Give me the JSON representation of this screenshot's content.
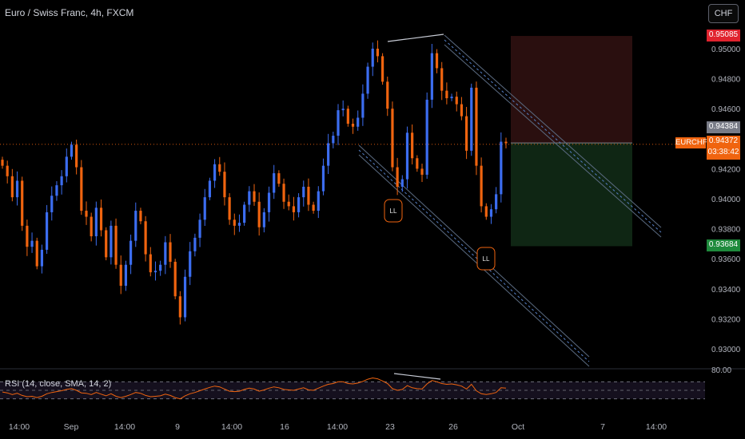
{
  "header": {
    "title": "Euro / Swiss Franc, 4h, FXCM",
    "currency_button": "CHF"
  },
  "colors": {
    "background": "#000000",
    "bull": "#3c6df0",
    "bear": "#f0640f",
    "channel": "#5a6a80",
    "channel_dash": "#5580c8",
    "stop_zone": "#2a0f0f",
    "target_zone": "#0f2614",
    "rsi_line": "#f0640f",
    "swing_line": "#c8ccd6"
  },
  "price_tags": {
    "stop": "0.95085",
    "last": "0.94384",
    "current": "0.94372",
    "countdown": "03:38:42",
    "target": "0.93684",
    "symbol": "EURCHF"
  },
  "markers": [
    "LL",
    "LL"
  ],
  "rsi": {
    "label": "RSI (14, close, SMA, 14, 2)",
    "axis_label": "80.00"
  },
  "chart_data": {
    "type": "candlestick",
    "title": "Euro / Swiss Franc, 4h, FXCM",
    "symbol": "EURCHF",
    "timeframe": "4h",
    "y_axis": {
      "ticks": [
        "0.95000",
        "0.94800",
        "0.94600",
        "0.94200",
        "0.94000",
        "0.93800",
        "0.93600",
        "0.93400",
        "0.93200",
        "0.93000"
      ],
      "range": [
        0.9292,
        0.9517
      ]
    },
    "x_axis": {
      "ticks": [
        "14:00",
        "Sep",
        "14:00",
        "9",
        "14:00",
        "16",
        "14:00",
        "23",
        "26",
        "Oct",
        "7",
        "14:00"
      ]
    },
    "closes": [
      0.9422,
      0.9415,
      0.9401,
      0.9412,
      0.9382,
      0.9368,
      0.9372,
      0.9355,
      0.9366,
      0.9391,
      0.9402,
      0.9409,
      0.9415,
      0.9428,
      0.9436,
      0.9421,
      0.9392,
      0.9388,
      0.9375,
      0.9394,
      0.9379,
      0.9361,
      0.9382,
      0.9356,
      0.9342,
      0.9356,
      0.9372,
      0.9392,
      0.9385,
      0.9363,
      0.9351,
      0.9352,
      0.9356,
      0.9371,
      0.9358,
      0.9335,
      0.9321,
      0.9348,
      0.9365,
      0.9374,
      0.9386,
      0.9401,
      0.9412,
      0.9423,
      0.9418,
      0.9401,
      0.9386,
      0.9382,
      0.9384,
      0.9396,
      0.9405,
      0.9398,
      0.9381,
      0.9391,
      0.9404,
      0.9417,
      0.941,
      0.9398,
      0.9395,
      0.9391,
      0.9401,
      0.9408,
      0.9396,
      0.9392,
      0.9405,
      0.9422,
      0.9437,
      0.9442,
      0.9459,
      0.946,
      0.945,
      0.9448,
      0.9454,
      0.947,
      0.9488,
      0.95,
      0.9495,
      0.9478,
      0.946,
      0.9421,
      0.9408,
      0.9413,
      0.9444,
      0.9427,
      0.942,
      0.9416,
      0.9466,
      0.9497,
      0.9487,
      0.9472,
      0.9467,
      0.9468,
      0.9463,
      0.9455,
      0.9432,
      0.9474,
      0.9422,
      0.9395,
      0.9388,
      0.9393,
      0.9403,
      0.9438,
      0.9437
    ],
    "stop_level": 0.95085,
    "entry_level": 0.94372,
    "target_level": 0.93684,
    "last_price": 0.94384,
    "rsi_series": [
      46,
      44,
      40,
      43,
      38,
      35,
      36,
      33,
      36,
      42,
      45,
      47,
      49,
      52,
      54,
      50,
      44,
      43,
      40,
      45,
      41,
      37,
      42,
      36,
      33,
      36,
      40,
      45,
      43,
      38,
      35,
      36,
      37,
      41,
      38,
      33,
      30,
      37,
      42,
      45,
      49,
      53,
      57,
      60,
      58,
      53,
      48,
      47,
      48,
      52,
      55,
      53,
      48,
      51,
      55,
      58,
      56,
      52,
      51,
      50,
      53,
      56,
      51,
      50,
      55,
      60,
      64,
      66,
      70,
      70,
      66,
      65,
      67,
      71,
      76,
      79,
      77,
      72,
      66,
      54,
      50,
      52,
      61,
      56,
      54,
      53,
      65,
      73,
      70,
      66,
      64,
      65,
      63,
      60,
      53,
      64,
      49,
      42,
      40,
      42,
      45,
      56,
      55
    ],
    "rsi_range": [
      20,
      80
    ],
    "rsi_levels": [
      70,
      50,
      30
    ]
  }
}
